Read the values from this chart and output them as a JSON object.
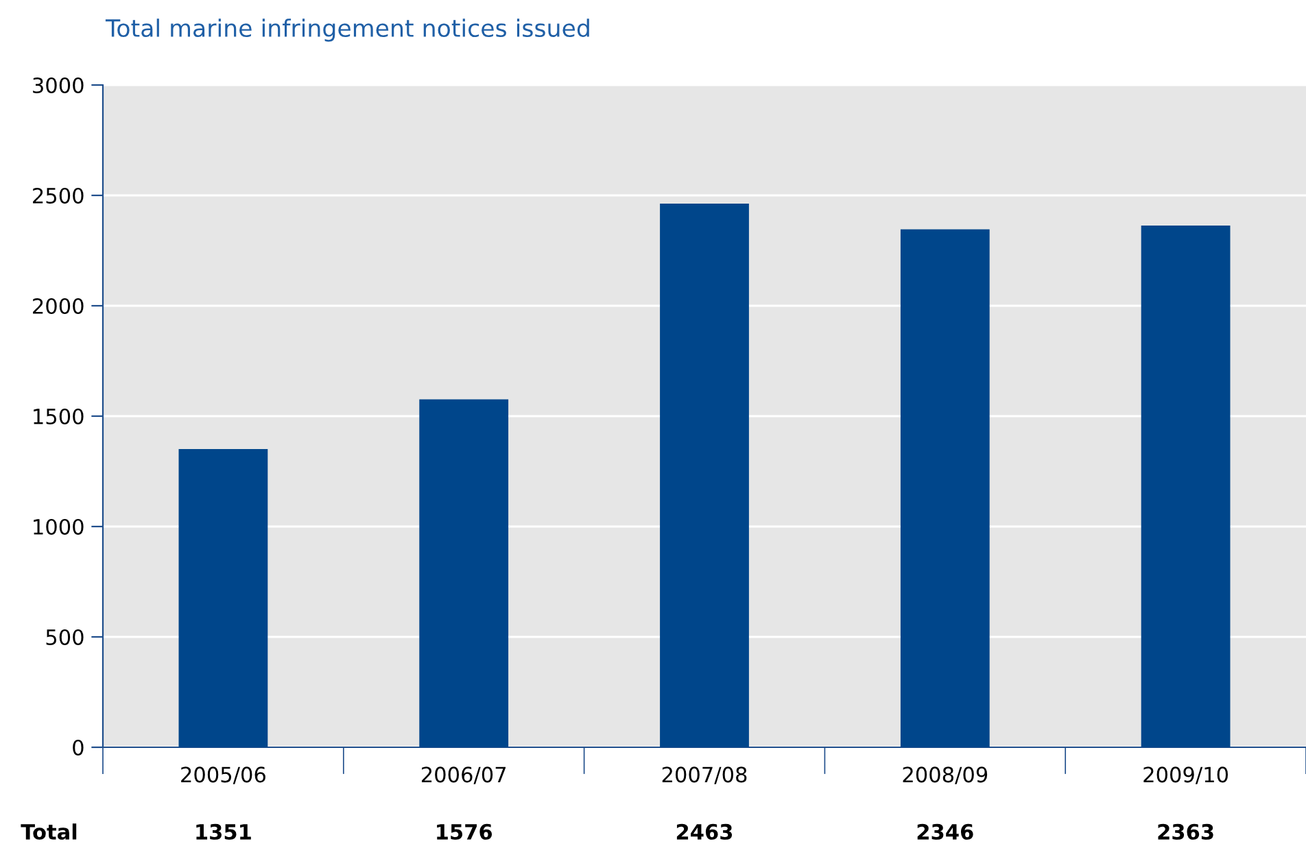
{
  "chart_data": {
    "type": "bar",
    "title": "Total marine infringement notices issued",
    "categories": [
      "2005/06",
      "2006/07",
      "2007/08",
      "2008/09",
      "2009/10"
    ],
    "values": [
      1351,
      1576,
      2463,
      2346,
      2363
    ],
    "color": "#00468b",
    "ylim": [
      0,
      3000
    ],
    "yticks": [
      0,
      500,
      1000,
      1500,
      2000,
      2500,
      3000
    ],
    "grid": "y",
    "data_labels": true,
    "annotations": [
      "Total"
    ]
  }
}
